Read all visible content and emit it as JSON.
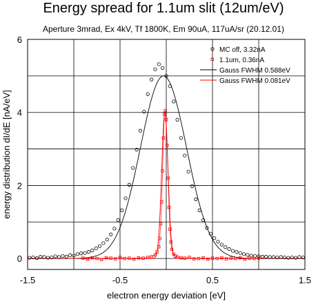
{
  "chart_data": {
    "type": "scatter",
    "title": "Energy spread for 1.1um slit (12um/eV)",
    "subtitle": "Aperture 3mrad, Ex 4kV, Tf 1800K, Em 90uA,  117uA/sr (20.12.01)",
    "xlabel": "electron energy deviation [eV]",
    "ylabel": "energy distribution dI/dE [nA/eV]",
    "xlim": [
      -1.5,
      1.5
    ],
    "ylim": [
      -0.3,
      6
    ],
    "xticks": [
      -1.5,
      -1,
      -0.5,
      0,
      0.5,
      1,
      1.5
    ],
    "xtick_labels": [
      "-1.5",
      "",
      "-0.5",
      "",
      "0.5",
      "",
      "1.5"
    ],
    "yticks": [
      0,
      1,
      2,
      3,
      4,
      5,
      6
    ],
    "ytick_labels": [
      "0",
      "",
      "2",
      "",
      "4",
      "",
      "6"
    ],
    "grid": true,
    "legend_position": "top-right",
    "series": [
      {
        "name": "MC off, 3.32nA",
        "style": "scatter",
        "marker": "circle",
        "color": "#000000",
        "x": [
          -1.48,
          -1.44,
          -1.4,
          -1.36,
          -1.32,
          -1.28,
          -1.24,
          -1.2,
          -1.16,
          -1.12,
          -1.08,
          -1.04,
          -1.0,
          -0.96,
          -0.92,
          -0.88,
          -0.84,
          -0.8,
          -0.76,
          -0.72,
          -0.68,
          -0.64,
          -0.6,
          -0.56,
          -0.52,
          -0.48,
          -0.44,
          -0.4,
          -0.36,
          -0.32,
          -0.28,
          -0.24,
          -0.2,
          -0.16,
          -0.12,
          -0.08,
          -0.04,
          0.0,
          0.04,
          0.08,
          0.12,
          0.16,
          0.2,
          0.24,
          0.28,
          0.32,
          0.36,
          0.4,
          0.44,
          0.48,
          0.52,
          0.56,
          0.6,
          0.64,
          0.68,
          0.72,
          0.76,
          0.8,
          0.84,
          0.88,
          0.92,
          0.96,
          1.0,
          1.04,
          1.08,
          1.12,
          1.16,
          1.2,
          1.24,
          1.28,
          1.32,
          1.36,
          1.4,
          1.44,
          1.48
        ],
        "y": [
          0.02,
          0.03,
          0.01,
          0.05,
          0.04,
          0.02,
          0.03,
          0.06,
          0.04,
          0.07,
          0.05,
          0.09,
          0.08,
          0.12,
          0.14,
          0.15,
          0.18,
          0.22,
          0.28,
          0.34,
          0.42,
          0.52,
          0.66,
          0.82,
          1.05,
          1.32,
          1.65,
          2.02,
          2.48,
          2.98,
          3.5,
          4.02,
          4.5,
          4.9,
          5.18,
          5.32,
          5.22,
          5.0,
          4.72,
          4.3,
          3.8,
          3.3,
          2.82,
          2.38,
          1.98,
          1.62,
          1.32,
          1.05,
          0.84,
          0.68,
          0.56,
          0.46,
          0.38,
          0.31,
          0.26,
          0.21,
          0.18,
          0.15,
          0.12,
          0.1,
          0.08,
          0.07,
          0.06,
          0.05,
          0.05,
          0.04,
          0.04,
          0.03,
          0.04,
          0.03,
          0.02,
          0.03,
          0.02,
          0.04,
          0.03
        ]
      },
      {
        "name": "1.1um, 0.36nA",
        "style": "scatter",
        "marker": "square",
        "color": "#ff0000",
        "x": [
          -0.9,
          -0.85,
          -0.8,
          -0.75,
          -0.7,
          -0.65,
          -0.6,
          -0.55,
          -0.5,
          -0.45,
          -0.4,
          -0.35,
          -0.3,
          -0.25,
          -0.2,
          -0.16,
          -0.12,
          -0.1,
          -0.08,
          -0.07,
          -0.06,
          -0.05,
          -0.04,
          -0.03,
          -0.02,
          -0.01,
          0.0,
          0.01,
          0.02,
          0.03,
          0.04,
          0.05,
          0.06,
          0.08,
          0.1,
          0.12,
          0.16,
          0.2,
          0.25,
          0.3,
          0.35,
          0.4,
          0.45,
          0.5,
          0.55,
          0.6,
          0.65,
          0.7,
          0.75,
          0.8,
          0.85,
          0.9,
          0.95,
          1.0
        ],
        "y": [
          0.01,
          -0.02,
          0.02,
          0.0,
          -0.03,
          0.02,
          0.01,
          -0.01,
          0.03,
          0.0,
          0.01,
          -0.02,
          0.02,
          0.01,
          0.03,
          0.05,
          0.1,
          0.18,
          0.32,
          0.55,
          0.95,
          1.55,
          2.4,
          3.3,
          3.95,
          4.05,
          3.8,
          3.1,
          2.2,
          1.4,
          0.8,
          0.45,
          0.25,
          0.12,
          0.07,
          0.04,
          0.02,
          0.01,
          0.03,
          -0.01,
          0.0,
          0.02,
          -0.02,
          0.01,
          0.0,
          0.02,
          -0.01,
          0.01,
          0.0,
          0.02,
          -0.02,
          0.01,
          0.0,
          0.01
        ]
      },
      {
        "name": "Gauss FWHM 0.588eV",
        "style": "line",
        "color": "#000000",
        "gauss": {
          "amplitude": 5.0,
          "center": -0.03,
          "fwhm": 0.588
        }
      },
      {
        "name": "Gauss FWHM 0.081eV",
        "style": "line",
        "color": "#ff0000",
        "gauss": {
          "amplitude": 4.0,
          "center": -0.015,
          "fwhm": 0.081
        }
      }
    ]
  }
}
